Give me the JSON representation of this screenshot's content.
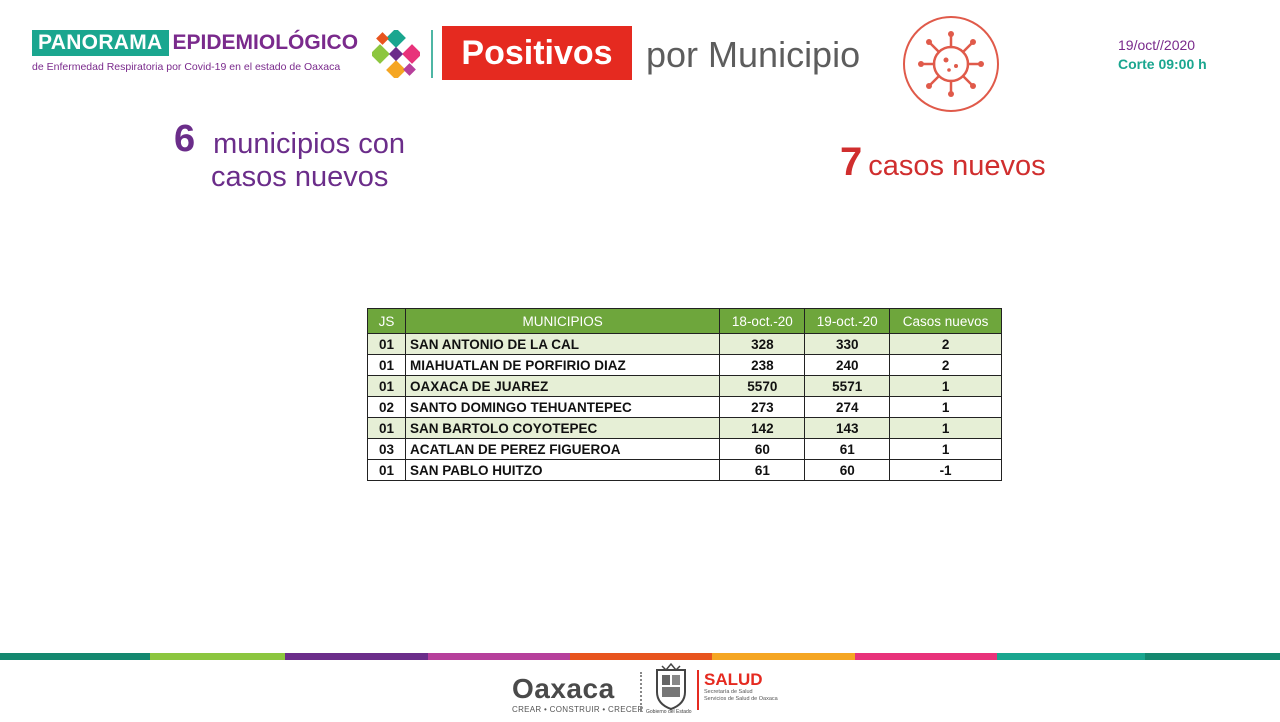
{
  "header": {
    "brand_word1": "PANORAMA",
    "brand_word2": "EPIDEMIOLÓGICO",
    "brand_subtitle": "de Enfermedad Respiratoria por Covid-19 en el estado de Oaxaca",
    "title_highlight": "Positivos",
    "title_rest": "por Municipio",
    "date": "19/oct//2020",
    "cutoff": "Corte 09:00 h"
  },
  "summary": {
    "municipios_count": "6",
    "municipios_line1": "municipios con",
    "municipios_line2": "casos nuevos",
    "cases_count": "7",
    "cases_label": "casos nuevos"
  },
  "table": {
    "headers": [
      "JS",
      "MUNICIPIOS",
      "18-oct.-20",
      "19-oct.-20",
      "Casos nuevos"
    ],
    "rows": [
      [
        "01",
        "SAN ANTONIO DE LA CAL",
        "328",
        "330",
        "2"
      ],
      [
        "01",
        "MIAHUATLAN DE PORFIRIO DIAZ",
        "238",
        "240",
        "2"
      ],
      [
        "01",
        "OAXACA DE JUAREZ",
        "5570",
        "5571",
        "1"
      ],
      [
        "02",
        "SANTO DOMINGO TEHUANTEPEC",
        "273",
        "274",
        "1"
      ],
      [
        "01",
        "SAN BARTOLO COYOTEPEC",
        "142",
        "143",
        "1"
      ],
      [
        "03",
        "ACATLAN DE PEREZ FIGUEROA",
        "60",
        "61",
        "1"
      ],
      [
        "01",
        "SAN PABLO HUITZO",
        "61",
        "60",
        "-1"
      ]
    ]
  },
  "footer": {
    "oaxaca_word": "Oaxaca",
    "oaxaca_tagline": "CREAR • CONSTRUIR • CRECER",
    "seal_caption": "Gobierno del Estado",
    "salud_title": "SALUD",
    "salud_line1": "Secretaría de Salud",
    "salud_line2": "Servicios de Salud de Oaxaca"
  },
  "colors": {
    "teal": "#1aa68f",
    "purple": "#7a2a8c",
    "red": "#e52a20",
    "table_header_green": "#6ea63c",
    "row_tint": "#e6efd6",
    "stripe": [
      "#14886f",
      "#8cc63f",
      "#6b2d8a",
      "#b63f9b",
      "#e8541e",
      "#f5a623",
      "#e8327a",
      "#1aa68f"
    ]
  },
  "icons": [
    "colored-x-logo-icon",
    "virus-icon",
    "state-seal-icon"
  ]
}
